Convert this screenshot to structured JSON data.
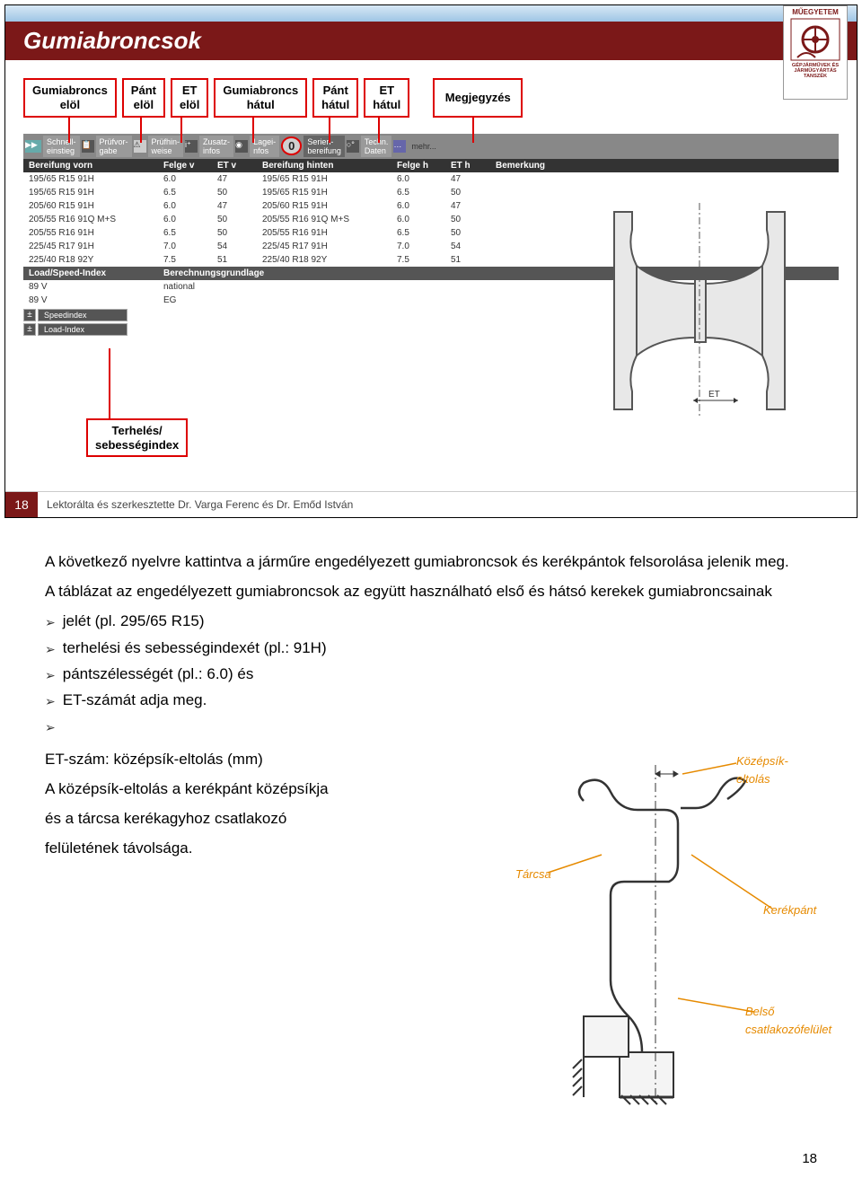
{
  "slide": {
    "title": "Gumiabroncsok",
    "logo": {
      "top": "MŰEGYETEM",
      "sub1": "GÉPJÁRMŰVEK ÉS",
      "sub2": "JÁRMŰGYÁRTÁS",
      "sub3": "TANSZÉK"
    },
    "callouts": [
      "Gumiabroncs\nelöl",
      "Pánt\nelöl",
      "ET\nelöl",
      "Gumiabroncs\nhátul",
      "Pánt\nhátul",
      "ET\nhátul",
      "Megjegyzés"
    ],
    "toolbar": [
      {
        "label": "Schnell-\neinstieg"
      },
      {
        "label": "Prüfvor-\ngabe"
      },
      {
        "label": "Prüfhin-\nweise"
      },
      {
        "label": "Zusatz-\ninfos"
      },
      {
        "label": "Lagei-\nnfos"
      },
      {
        "ring": "0",
        "label": "Serien-\nbereifung"
      },
      {
        "label": "Techn.\nDaten"
      },
      {
        "label": "mehr..."
      }
    ],
    "table": {
      "headers": [
        "Bereifung vorn",
        "Felge v",
        "ET v",
        "Bereifung hinten",
        "Felge h",
        "ET h",
        "Bemerkung"
      ],
      "rows": [
        [
          "195/65 R15 91H",
          "6.0",
          "47",
          "195/65 R15 91H",
          "6.0",
          "47",
          ""
        ],
        [
          "195/65 R15 91H",
          "6.5",
          "50",
          "195/65 R15 91H",
          "6.5",
          "50",
          ""
        ],
        [
          "205/60 R15 91H",
          "6.0",
          "47",
          "205/60 R15 91H",
          "6.0",
          "47",
          ""
        ],
        [
          "205/55 R16 91Q M+S",
          "6.0",
          "50",
          "205/55 R16 91Q M+S",
          "6.0",
          "50",
          ""
        ],
        [
          "205/55 R16 91H",
          "6.5",
          "50",
          "205/55 R16 91H",
          "6.5",
          "50",
          ""
        ],
        [
          "225/45 R17 91H",
          "7.0",
          "54",
          "225/45 R17 91H",
          "7.0",
          "54",
          ""
        ],
        [
          "225/40 R18 92Y",
          "7.5",
          "51",
          "225/40 R18 92Y",
          "7.5",
          "51",
          ""
        ]
      ]
    },
    "subhead": [
      "Load/Speed-Index",
      "Berechnungsgrundlage"
    ],
    "subrows": [
      [
        "89 V",
        "national"
      ],
      [
        "89 V",
        "EG"
      ]
    ],
    "speed": "Speedindex",
    "load": "Load-Index",
    "terheles": "Terhelés/\nsebességindex",
    "et_label": "ET",
    "footer": {
      "num": "18",
      "text": "Lektorálta és szerkesztette Dr. Varga Ferenc és Dr. Emőd István"
    }
  },
  "body": {
    "p1": "A következő nyelvre kattintva a járműre engedélyezett gumiabroncsok és kerékpántok felsorolása jelenik meg.",
    "p2": "A táblázat az engedélyezett gumiabroncsok az együtt használható első és hátsó kerekek gumiabroncsainak",
    "b1": "jelét (pl. 295/65 R15)",
    "b2": "terhelési és sebességindexét  (pl.: 91H)",
    "b3": "pántszélességét (pl.: 6.0) és",
    "b4": "ET-számát adja meg.",
    "p3a": "ET-szám: középsík-eltolás (mm)",
    "p3b": "A középsík-eltolás a kerékpánt középsíkja",
    "p3c": "és a tárcsa kerékagyhoz csatlakozó",
    "p3d": "felületének távolsága.",
    "wheel_labels": {
      "kozepsik": "Középsík-eltolás",
      "tarcsa": "Tárcsa",
      "kerekpant": "Kerékpánt",
      "belso": "Belső\ncsatlakozófelület"
    }
  },
  "page": "18",
  "colors": {
    "maroon": "#7b1818",
    "red": "#d00",
    "orange": "#e68a00",
    "gray": "#888"
  }
}
